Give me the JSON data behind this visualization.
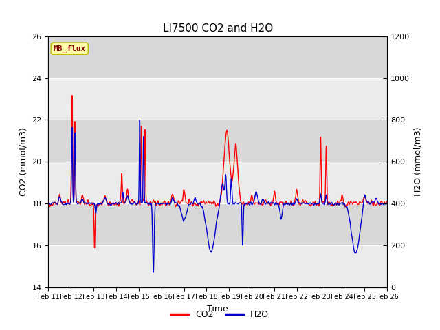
{
  "title": "LI7500 CO2 and H2O",
  "xlabel": "Time",
  "ylabel_left": "CO2 (mmol/m3)",
  "ylabel_right": "H2O (mmol/m3)",
  "ylim_left": [
    14,
    26
  ],
  "ylim_right": [
    0,
    1200
  ],
  "yticks_left": [
    14,
    16,
    18,
    20,
    22,
    24,
    26
  ],
  "yticks_right": [
    0,
    200,
    400,
    600,
    800,
    1000,
    1200
  ],
  "xticklabels": [
    "Feb 11",
    "Feb 12",
    "Feb 13",
    "Feb 14",
    "Feb 15",
    "Feb 16",
    "Feb 17",
    "Feb 18",
    "Feb 19",
    "Feb 20",
    "Feb 21",
    "Feb 22",
    "Feb 23",
    "Feb 24",
    "Feb 25",
    "Feb 26"
  ],
  "co2_color": "#ff0000",
  "h2o_color": "#0000cc",
  "line_width": 1.0,
  "bg_color_light": "#ebebeb",
  "bg_color_dark": "#d8d8d8",
  "fig_bg": "#ffffff",
  "legend_co2": "CO2",
  "legend_h2o": "H2O",
  "mb_flux_label": "MB_flux",
  "mb_flux_bg": "#ffffaa",
  "mb_flux_border": "#bbbb00",
  "mb_flux_color": "#880000",
  "n_points": 3600,
  "days": 15
}
